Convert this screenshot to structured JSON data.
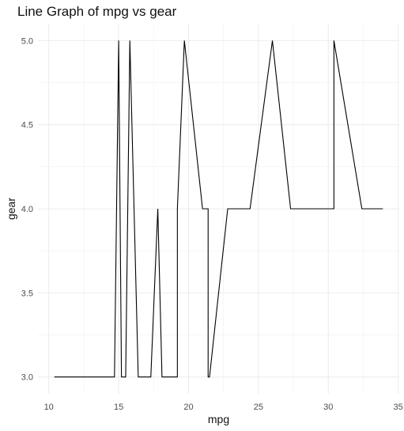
{
  "chart_data": {
    "type": "line",
    "title": "Line Graph of mpg vs gear",
    "xlabel": "mpg",
    "ylabel": "gear",
    "xlim": [
      10.4,
      33.9
    ],
    "ylim": [
      3.0,
      5.0
    ],
    "x_ticks": [
      10,
      15,
      20,
      25,
      30,
      35
    ],
    "y_ticks": [
      3.0,
      3.5,
      4.0,
      4.5,
      5.0
    ],
    "grid": true,
    "line_color": "#000000",
    "series": [
      {
        "x": [
          10.4,
          10.4,
          13.3,
          14.3,
          14.7,
          15.0,
          15.2,
          15.2,
          15.5,
          15.8,
          16.4,
          17.3,
          17.8,
          18.1,
          18.7,
          19.2,
          19.2,
          19.7,
          21.0,
          21.0,
          21.4,
          21.4,
          21.5,
          22.8,
          22.8,
          24.4,
          26.0,
          27.3,
          30.4,
          30.4,
          32.4,
          33.9
        ],
        "y": [
          3,
          3,
          3,
          3,
          3,
          5,
          3,
          3,
          3,
          5,
          3,
          3,
          4,
          3,
          3,
          3,
          4,
          5,
          4,
          4,
          4,
          3,
          3,
          4,
          4,
          4,
          5,
          4,
          4,
          5,
          4,
          4
        ]
      }
    ]
  }
}
